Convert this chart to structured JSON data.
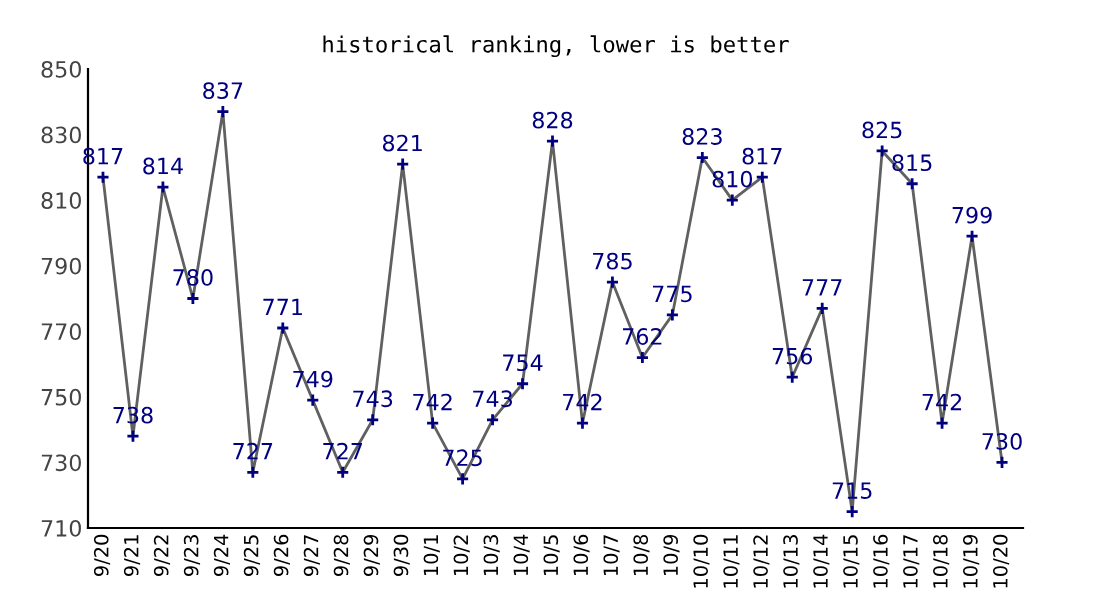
{
  "chart_data": {
    "type": "line",
    "title": "historical ranking, lower is better",
    "categories": [
      "9/20",
      "9/21",
      "9/22",
      "9/23",
      "9/24",
      "9/25",
      "9/26",
      "9/27",
      "9/28",
      "9/29",
      "9/30",
      "10/1",
      "10/2",
      "10/3",
      "10/4",
      "10/5",
      "10/6",
      "10/7",
      "10/8",
      "10/9",
      "10/10",
      "10/11",
      "10/12",
      "10/13",
      "10/14",
      "10/15",
      "10/16",
      "10/17",
      "10/18",
      "10/19",
      "10/20"
    ],
    "series": [
      {
        "color": "#606060",
        "values": [
          817,
          738,
          814,
          780,
          837,
          727,
          771,
          749,
          727,
          743,
          821,
          742,
          725,
          743,
          754,
          828,
          742,
          785,
          762,
          775,
          823,
          810,
          817,
          756,
          777,
          715,
          825,
          815,
          742,
          799,
          730
        ]
      }
    ],
    "ylim": [
      710,
      850
    ],
    "yticks": [
      710,
      730,
      750,
      770,
      790,
      810,
      830,
      850
    ],
    "marker": "cross",
    "line_style": "solid",
    "data_labels": true,
    "grid": false,
    "legend": false
  }
}
